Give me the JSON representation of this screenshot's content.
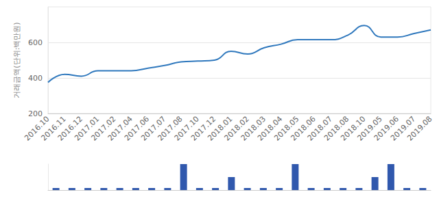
{
  "chart_data": [
    {
      "type": "line",
      "y_label": "거래금액(단위:백만원)",
      "categories": [
        "2016.10",
        "2016.11",
        "2016.12",
        "2017.01",
        "2017.02",
        "2017.04",
        "2017.06",
        "2017.07",
        "2017.08",
        "2017.10",
        "2017.12",
        "2018.01",
        "2018.02",
        "2018.03",
        "2018.04",
        "2018.05",
        "2018.06",
        "2018.07",
        "2018.08",
        "2018.10",
        "2019.05",
        "2019.06",
        "2019.07",
        "2019.08"
      ],
      "values": [
        375,
        420,
        410,
        440,
        440,
        440,
        455,
        470,
        490,
        495,
        500,
        550,
        535,
        570,
        590,
        615,
        615,
        615,
        640,
        695,
        630,
        630,
        650,
        670
      ],
      "color": "#2f78bd",
      "ylim": [
        200,
        800
      ],
      "yticks": [
        200,
        400,
        600
      ],
      "grid": true
    },
    {
      "type": "bar",
      "categories": [
        "2016.10",
        "2016.11",
        "2016.12",
        "2017.01",
        "2017.02",
        "2017.04",
        "2017.06",
        "2017.07",
        "2017.08",
        "2017.10",
        "2017.12",
        "2018.01",
        "2018.02",
        "2018.03",
        "2018.04",
        "2018.05",
        "2018.06",
        "2018.07",
        "2018.08",
        "2018.10",
        "2019.05",
        "2019.06",
        "2019.07",
        "2019.08"
      ],
      "values": [
        0,
        0,
        0,
        0,
        0,
        0,
        0,
        0,
        2,
        0,
        0,
        1,
        0,
        0,
        0,
        2,
        0,
        0,
        0,
        0,
        1,
        2,
        0,
        0
      ],
      "color": "#3058ad",
      "ylim": [
        0,
        2
      ],
      "tick_labels": false,
      "grid": false
    }
  ]
}
